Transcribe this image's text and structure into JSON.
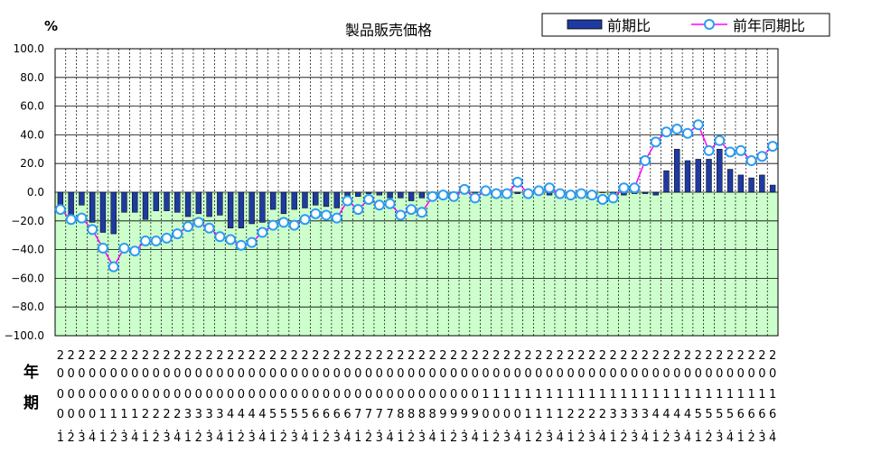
{
  "chart_data": {
    "type": "bar+line",
    "title": "製品販売価格",
    "ylabel": "%",
    "ylim": [
      -100,
      100
    ],
    "yticks": [
      "100.0",
      "80.0",
      "60.0",
      "40.0",
      "20.0",
      "0.0",
      "−20.0",
      "−40.0",
      "−60.0",
      "−80.0",
      "−100.0"
    ],
    "ytick_values": [
      100,
      80,
      60,
      40,
      20,
      0,
      -20,
      -40,
      -60,
      -80,
      -100
    ],
    "row_labels": [
      "年",
      "期"
    ],
    "categories": [
      "2000.1",
      "2000.2",
      "2000.3",
      "2000.4",
      "2001.1",
      "2001.2",
      "2001.3",
      "2001.4",
      "2002.1",
      "2002.2",
      "2002.3",
      "2002.4",
      "2003.1",
      "2003.2",
      "2003.3",
      "2003.4",
      "2004.1",
      "2004.2",
      "2004.3",
      "2004.4",
      "2005.1",
      "2005.2",
      "2005.3",
      "2005.4",
      "2006.1",
      "2006.2",
      "2006.3",
      "2006.4",
      "2007.1",
      "2007.2",
      "2007.3",
      "2007.4",
      "2008.1",
      "2008.2",
      "2008.3",
      "2008.4",
      "2009.1",
      "2009.2",
      "2009.3",
      "2009.4",
      "2010.1",
      "2010.2",
      "2010.3",
      "2010.4",
      "2011.1",
      "2011.2",
      "2011.3",
      "2011.4",
      "2012.1",
      "2012.2",
      "2012.3",
      "2012.4",
      "2013.1",
      "2013.2",
      "2013.3",
      "2013.4",
      "2014.1",
      "2014.2",
      "2014.3",
      "2014.4",
      "2015.1",
      "2015.2",
      "2015.3",
      "2015.4",
      "2016.1",
      "2016.2",
      "2016.3",
      "2016.4"
    ],
    "legend": {
      "position": "top-right",
      "entries": [
        "前期比",
        "前年同期比"
      ]
    },
    "grid": true,
    "colors": {
      "bar": "#1f3aa0",
      "line": "#ff00ff",
      "marker_fill": "#ffffff",
      "marker_edge": "#2a9df4",
      "plot_bg": "#ccffcc"
    },
    "series": [
      {
        "name": "前期比",
        "kind": "bar",
        "values": [
          -10,
          -18,
          -9,
          -21,
          -28,
          -29,
          -14,
          -14,
          -19,
          -13,
          -13,
          -14,
          -17,
          -15,
          -17,
          -16,
          -25,
          -25,
          -22,
          -21,
          -12,
          -15,
          -12,
          -11,
          -9,
          -10,
          -11,
          -9,
          -3,
          -1,
          -2,
          -4,
          -4,
          -6,
          -4,
          -4,
          -1,
          -1,
          -1,
          0,
          1,
          -1,
          0,
          -1,
          0,
          0,
          -2,
          1,
          1,
          1,
          -1,
          0,
          -1,
          -2,
          -1,
          -1,
          -2,
          15,
          30,
          22,
          23,
          23,
          30,
          16,
          12,
          10,
          12,
          5
        ]
      },
      {
        "name": "前年同期比",
        "kind": "line",
        "values": [
          -12,
          -19,
          -18,
          -26,
          -39,
          -52,
          -39,
          -41,
          -34,
          -34,
          -32,
          -29,
          -24,
          -21,
          -25,
          -31,
          -33,
          -37,
          -35,
          -28,
          -23,
          -21,
          -23,
          -19,
          -15,
          -16,
          -18,
          -6,
          -12,
          -5,
          -9,
          -8,
          -16,
          -12,
          -14,
          -3,
          -2,
          -3,
          2,
          -4,
          1,
          -1,
          -1,
          7,
          -1,
          1,
          3,
          -1,
          -2,
          -1,
          -2,
          -5,
          -4,
          3,
          3,
          22,
          35,
          42,
          44,
          41,
          47,
          29,
          36,
          28,
          29,
          22,
          25,
          32
        ]
      }
    ]
  }
}
